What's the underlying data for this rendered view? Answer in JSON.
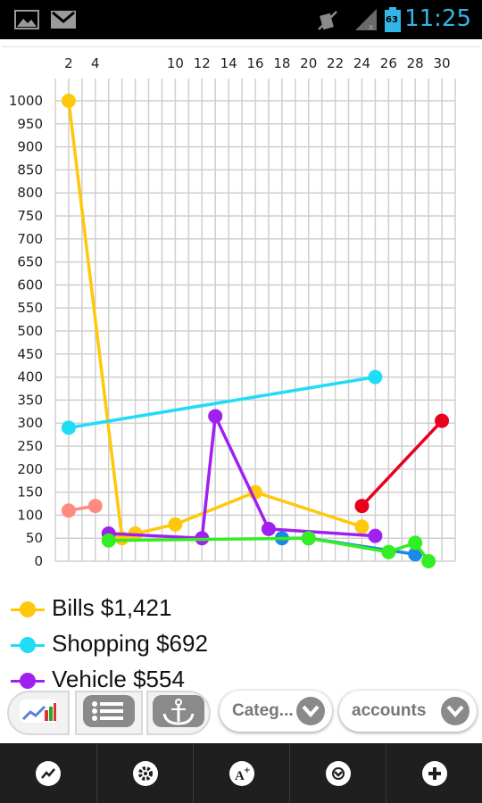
{
  "status_bar": {
    "time": "11:25",
    "battery_level": "63",
    "icons": [
      "gallery-icon",
      "gmail-icon",
      "mute-icon",
      "signal-icon",
      "battery-icon"
    ],
    "accent_color": "#33b5e5"
  },
  "chart_data": {
    "type": "line",
    "x_ticks": [
      "2",
      "4",
      "6",
      "8",
      "10",
      "12",
      "14",
      "16",
      "18",
      "20",
      "22",
      "24",
      "26",
      "28",
      "30"
    ],
    "x_tick_labels": [
      "2",
      "4",
      "",
      "",
      "10",
      "12",
      "14",
      "16",
      "18",
      "20",
      "22",
      "24",
      "26",
      "28",
      "30"
    ],
    "y_ticks": [
      "1000",
      "950",
      "900",
      "850",
      "800",
      "750",
      "700",
      "650",
      "600",
      "550",
      "500",
      "450",
      "400",
      "350",
      "300",
      "250",
      "200",
      "150",
      "100",
      "50",
      "0"
    ],
    "xlim": [
      1,
      31
    ],
    "ylim": [
      0,
      1000
    ],
    "grid": true,
    "series": [
      {
        "name": "Bills",
        "color": "#ffc80a",
        "points": [
          [
            2,
            1000
          ],
          [
            6,
            50
          ],
          [
            7,
            60
          ],
          [
            10,
            80
          ],
          [
            16,
            150
          ],
          [
            24,
            75
          ]
        ]
      },
      {
        "name": "Shopping",
        "color": "#20dcf5",
        "points": [
          [
            2,
            290
          ],
          [
            25,
            400
          ]
        ]
      },
      {
        "name": "Vehicle",
        "color": "#a020f0",
        "points": [
          [
            5,
            60
          ],
          [
            12,
            50
          ],
          [
            13,
            315
          ],
          [
            17,
            70
          ],
          [
            25,
            55
          ]
        ]
      },
      {
        "name": "",
        "color": "#ff8a80",
        "points": [
          [
            2,
            110
          ],
          [
            4,
            120
          ]
        ]
      },
      {
        "name": "",
        "color": "#e8001c",
        "points": [
          [
            24,
            120
          ],
          [
            30,
            305
          ]
        ]
      },
      {
        "name": "",
        "color": "#1e88e5",
        "points": [
          [
            18,
            50
          ],
          [
            20,
            50
          ],
          [
            28,
            15
          ]
        ]
      },
      {
        "name": "",
        "color": "#33ee22",
        "points": [
          [
            5,
            45
          ],
          [
            20,
            50
          ],
          [
            26,
            20
          ],
          [
            28,
            40
          ],
          [
            29,
            0
          ]
        ]
      }
    ]
  },
  "legend": [
    {
      "label": "Bills $1,421",
      "color": "#ffc80a"
    },
    {
      "label": "Shopping $692",
      "color": "#20dcf5"
    },
    {
      "label": "Vehicle $554",
      "color": "#a020f0"
    }
  ],
  "toolbar": {
    "category_label": "Categ...",
    "accounts_label": "accounts"
  },
  "bottom_nav": {
    "items": [
      "chart-icon",
      "settings-icon",
      "add-text-icon",
      "filter-icon",
      "add-icon"
    ]
  }
}
